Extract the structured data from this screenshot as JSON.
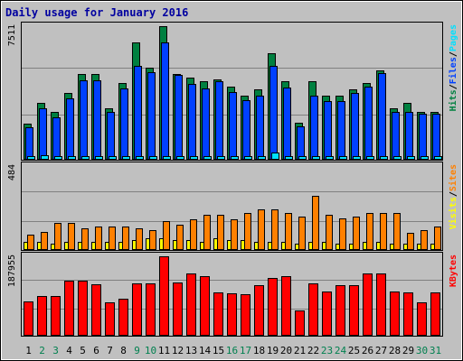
{
  "chart_data": {
    "type": "bar",
    "title": "Daily usage for January 2016",
    "categories": [
      "1",
      "2",
      "3",
      "4",
      "5",
      "6",
      "7",
      "8",
      "9",
      "10",
      "11",
      "12",
      "13",
      "14",
      "15",
      "16",
      "17",
      "18",
      "19",
      "20",
      "21",
      "22",
      "23",
      "24",
      "25",
      "26",
      "27",
      "28",
      "29",
      "30",
      "31"
    ],
    "weekend_days": [
      2,
      3,
      9,
      10,
      16,
      17,
      23,
      24,
      30,
      31
    ],
    "colors": {
      "background": "#c0c0c0",
      "panel": "#c0c0c0",
      "title": "#0000a0",
      "hits": "#008040",
      "files": "#0040ff",
      "pages": "#00e0ff",
      "visits": "#ffff00",
      "sites": "#ff8000",
      "kbytes": "#ff0000",
      "weekday_label": "#000000",
      "weekend_label": "#00804f",
      "grid": "#808080"
    },
    "panels": [
      {
        "id": "hits_files_pages",
        "ymax_label": "7511",
        "ymax": 7511,
        "legend": [
          {
            "text": "Hits",
            "color_key": "hits"
          },
          {
            "text": "/",
            "color_key": "weekday_label"
          },
          {
            "text": "Files",
            "color_key": "files"
          },
          {
            "text": "/",
            "color_key": "weekday_label"
          },
          {
            "text": "Pages",
            "color_key": "pages"
          }
        ],
        "series": [
          {
            "name": "Hits",
            "color_key": "hits",
            "values": [
              2040,
              3200,
              2700,
              3740,
              4810,
              4810,
              2900,
              4300,
              6580,
              5160,
              7511,
              4810,
              4600,
              4390,
              4500,
              4100,
              3600,
              3950,
              6000,
              4400,
              2090,
              4390,
              3600,
              3600,
              3950,
              4290,
              5000,
              2900,
              3200,
              2700,
              2700
            ]
          },
          {
            "name": "Files",
            "color_key": "files",
            "values": [
              1830,
              2880,
              2360,
              3460,
              4450,
              4450,
              2680,
              4000,
              5300,
              4930,
              6580,
              4780,
              4280,
              4000,
              4430,
              3810,
              3350,
              3600,
              5300,
              4070,
              1880,
              3580,
              3290,
              3290,
              3770,
              4100,
              4880,
              2680,
              2680,
              2570,
              2570
            ]
          },
          {
            "name": "Pages",
            "color_key": "pages",
            "values": [
              200,
              230,
              200,
              200,
              200,
              200,
              200,
              200,
              200,
              200,
              200,
              200,
              200,
              200,
              200,
              200,
              200,
              200,
              390,
              200,
              200,
              200,
              200,
              200,
              200,
              200,
              200,
              200,
              200,
              200,
              200
            ]
          }
        ]
      },
      {
        "id": "visits_sites",
        "ymax_label": "484",
        "ymax": 484,
        "legend": [
          {
            "text": "Visits",
            "color_key": "visits"
          },
          {
            "text": "/",
            "color_key": "weekday_label"
          },
          {
            "text": "Sites",
            "color_key": "sites"
          }
        ],
        "series": [
          {
            "name": "Visits",
            "color_key": "visits",
            "values": [
              48,
              48,
              38,
              48,
              48,
              48,
              48,
              48,
              58,
              68,
              68,
              58,
              58,
              48,
              68,
              58,
              58,
              48,
              48,
              48,
              38,
              48,
              48,
              38,
              38,
              48,
              48,
              38,
              38,
              38,
              38
            ]
          },
          {
            "name": "Sites",
            "color_key": "sites",
            "values": [
              87,
              106,
              155,
              155,
              126,
              136,
              136,
              136,
              126,
              116,
              165,
              146,
              175,
              204,
              204,
              175,
              214,
              233,
              233,
              214,
              194,
              313,
              204,
              184,
              194,
              214,
              214,
              214,
              97,
              116,
              136
            ]
          }
        ]
      },
      {
        "id": "kbytes",
        "ymax_label": "187955",
        "ymax": 187955,
        "legend": [
          {
            "text": "KBytes",
            "color_key": "kbytes"
          }
        ],
        "series": [
          {
            "name": "KBytes",
            "color_key": "kbytes",
            "values": [
              82000,
              94000,
              95000,
              130000,
              130000,
              122000,
              79000,
              88000,
              124000,
              124000,
              187955,
              127000,
              147000,
              141000,
              103000,
              100000,
              99000,
              119000,
              137000,
              141000,
              59000,
              123000,
              104000,
              120000,
              119000,
              147000,
              147000,
              104000,
              102000,
              79000,
              103000
            ]
          }
        ]
      }
    ]
  }
}
